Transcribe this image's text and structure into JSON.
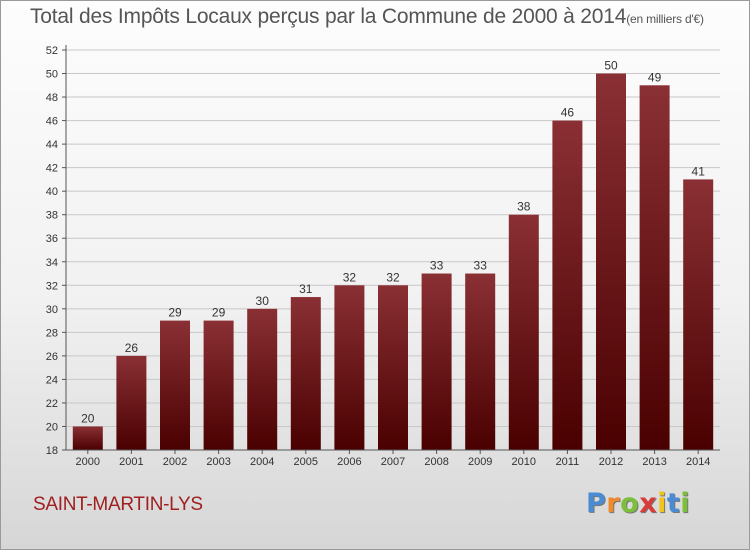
{
  "title_main": "Total des Impôts Locaux perçus par la Commune de 2000 à 2014",
  "title_unit": "(en milliers d'€)",
  "commune": "SAINT-MARTIN-LYS",
  "logo": {
    "letters": [
      "P",
      "r",
      "o",
      "x",
      "i",
      "t",
      "i"
    ],
    "colors": [
      "#4a8bd4",
      "#f08a2b",
      "#7cbf3a",
      "#d93b3b",
      "#f0c419",
      "#4a8bd4",
      "#7cbf3a"
    ]
  },
  "colors": {
    "bar_top": "#8a3035",
    "bar_bottom": "#4a0000",
    "grid": "#c8c8c8",
    "axis": "#555555"
  },
  "chart_data": {
    "type": "bar",
    "title": "Total des Impôts Locaux perçus par la Commune de 2000 à 2014",
    "xlabel": "",
    "ylabel": "",
    "categories": [
      "2000",
      "2001",
      "2002",
      "2003",
      "2004",
      "2005",
      "2006",
      "2007",
      "2008",
      "2009",
      "2010",
      "2011",
      "2012",
      "2013",
      "2014"
    ],
    "values": [
      20,
      26,
      29,
      29,
      30,
      31,
      32,
      32,
      33,
      33,
      38,
      46,
      50,
      49,
      41
    ],
    "ylim": [
      18,
      52
    ],
    "yticks": [
      18,
      20,
      22,
      24,
      26,
      28,
      30,
      32,
      34,
      36,
      38,
      40,
      42,
      44,
      46,
      48,
      50,
      52
    ],
    "grid": true,
    "data_labels": true
  }
}
